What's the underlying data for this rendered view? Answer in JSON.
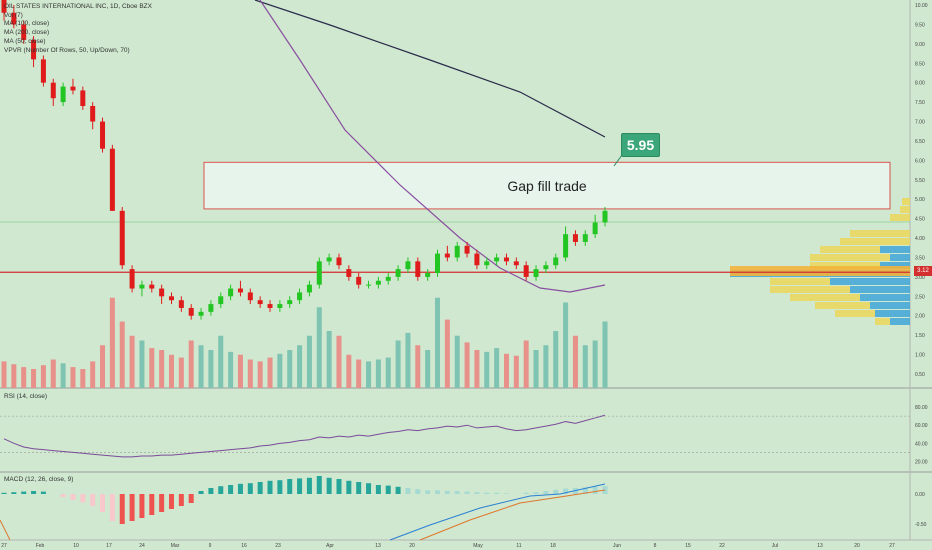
{
  "legend": {
    "title": "OIL STATES INTERNATIONAL INC, 1D, Cboe BZX",
    "lines": [
      "Vol (7)",
      "MA (100, close)",
      "MA (200, close)",
      "MA (50, close)",
      "VPVR (Number Of Rows, 50, Up/Down, 70)"
    ]
  },
  "indicators": {
    "rsi_label": "RSI (14, close)",
    "macd_label": "MACD (12, 26, close, 9)"
  },
  "annotation": {
    "gap_label": "Gap fill trade",
    "callout": "5.95"
  },
  "current_price": "3.12",
  "colors": {
    "up": "#22c522",
    "down": "#e01b1b",
    "vol_up": "#7fc3b2",
    "vol_down": "#e8908a",
    "macd_pos": "#26a69a",
    "macd_neg": "#ef5350"
  },
  "chart_data": {
    "type": "candlestick",
    "price_axis": {
      "min": 0.5,
      "max": 10.0,
      "ticks": [
        "10.00",
        "9.50",
        "9.00",
        "8.50",
        "8.00",
        "7.50",
        "7.00",
        "6.50",
        "6.00",
        "5.50",
        "5.00",
        "4.50",
        "4.00",
        "3.50",
        "3.00",
        "2.50",
        "2.00",
        "1.50",
        "1.00",
        "0.50"
      ]
    },
    "x_ticks": [
      "27",
      "Feb",
      "10",
      "17",
      "24",
      "Mar",
      "9",
      "16",
      "23",
      "Apr",
      "13",
      "20",
      "May",
      "11",
      "18",
      "Jun",
      "8",
      "15",
      "22",
      "Jul",
      "13",
      "20",
      "27"
    ],
    "candles": [
      [
        10.6,
        10.9,
        9.6,
        9.8
      ],
      [
        9.8,
        10.0,
        9.4,
        9.5
      ],
      [
        9.5,
        9.6,
        9.0,
        9.1
      ],
      [
        9.1,
        9.2,
        8.4,
        8.6
      ],
      [
        8.6,
        8.7,
        7.9,
        8.0
      ],
      [
        8.0,
        8.1,
        7.4,
        7.6
      ],
      [
        7.5,
        8.0,
        7.4,
        7.9
      ],
      [
        7.9,
        8.1,
        7.7,
        7.8
      ],
      [
        7.8,
        7.9,
        7.3,
        7.4
      ],
      [
        7.4,
        7.5,
        6.8,
        7.0
      ],
      [
        7.0,
        7.1,
        6.2,
        6.3
      ],
      [
        6.3,
        6.4,
        4.7,
        4.7
      ],
      [
        4.7,
        4.8,
        3.2,
        3.3
      ],
      [
        3.2,
        3.3,
        2.6,
        2.7
      ],
      [
        2.7,
        2.9,
        2.5,
        2.8
      ],
      [
        2.8,
        2.9,
        2.6,
        2.7
      ],
      [
        2.7,
        2.8,
        2.3,
        2.5
      ],
      [
        2.5,
        2.6,
        2.3,
        2.4
      ],
      [
        2.4,
        2.5,
        2.1,
        2.2
      ],
      [
        2.2,
        2.3,
        1.9,
        2.0
      ],
      [
        2.0,
        2.2,
        1.9,
        2.1
      ],
      [
        2.1,
        2.4,
        2.0,
        2.3
      ],
      [
        2.3,
        2.6,
        2.2,
        2.5
      ],
      [
        2.5,
        2.8,
        2.4,
        2.7
      ],
      [
        2.7,
        2.9,
        2.5,
        2.6
      ],
      [
        2.6,
        2.7,
        2.3,
        2.4
      ],
      [
        2.4,
        2.5,
        2.2,
        2.3
      ],
      [
        2.3,
        2.4,
        2.1,
        2.2
      ],
      [
        2.2,
        2.4,
        2.1,
        2.3
      ],
      [
        2.3,
        2.5,
        2.2,
        2.4
      ],
      [
        2.4,
        2.7,
        2.3,
        2.6
      ],
      [
        2.6,
        2.9,
        2.5,
        2.8
      ],
      [
        2.8,
        3.5,
        2.7,
        3.4
      ],
      [
        3.4,
        3.6,
        3.3,
        3.5
      ],
      [
        3.5,
        3.6,
        3.2,
        3.3
      ],
      [
        3.2,
        3.3,
        2.9,
        3.0
      ],
      [
        3.0,
        3.1,
        2.7,
        2.8
      ],
      [
        2.8,
        2.9,
        2.7,
        2.8
      ],
      [
        2.8,
        3.0,
        2.7,
        2.9
      ],
      [
        2.9,
        3.1,
        2.8,
        3.0
      ],
      [
        3.0,
        3.3,
        2.9,
        3.2
      ],
      [
        3.2,
        3.5,
        3.1,
        3.4
      ],
      [
        3.4,
        3.5,
        2.9,
        3.0
      ],
      [
        3.0,
        3.2,
        2.9,
        3.1
      ],
      [
        3.1,
        3.7,
        3.0,
        3.6
      ],
      [
        3.6,
        3.8,
        3.4,
        3.5
      ],
      [
        3.5,
        3.9,
        3.4,
        3.8
      ],
      [
        3.8,
        3.9,
        3.5,
        3.6
      ],
      [
        3.6,
        3.7,
        3.2,
        3.3
      ],
      [
        3.3,
        3.5,
        3.2,
        3.4
      ],
      [
        3.4,
        3.6,
        3.3,
        3.5
      ],
      [
        3.5,
        3.6,
        3.3,
        3.4
      ],
      [
        3.4,
        3.5,
        3.2,
        3.3
      ],
      [
        3.3,
        3.4,
        2.9,
        3.0
      ],
      [
        3.0,
        3.3,
        2.9,
        3.2
      ],
      [
        3.2,
        3.4,
        3.1,
        3.3
      ],
      [
        3.3,
        3.6,
        3.2,
        3.5
      ],
      [
        3.5,
        4.3,
        3.4,
        4.1
      ],
      [
        4.1,
        4.2,
        3.8,
        3.9
      ],
      [
        3.9,
        4.2,
        3.8,
        4.1
      ],
      [
        4.1,
        4.6,
        4.0,
        4.4
      ],
      [
        4.4,
        4.8,
        4.3,
        4.7
      ]
    ],
    "volume_relative": [
      0.28,
      0.25,
      0.22,
      0.2,
      0.24,
      0.3,
      0.26,
      0.22,
      0.2,
      0.28,
      0.45,
      0.95,
      0.7,
      0.55,
      0.5,
      0.42,
      0.4,
      0.35,
      0.32,
      0.5,
      0.45,
      0.4,
      0.55,
      0.38,
      0.35,
      0.3,
      0.28,
      0.32,
      0.36,
      0.4,
      0.45,
      0.55,
      0.85,
      0.6,
      0.55,
      0.35,
      0.3,
      0.28,
      0.3,
      0.32,
      0.5,
      0.58,
      0.45,
      0.4,
      0.95,
      0.72,
      0.55,
      0.48,
      0.4,
      0.38,
      0.42,
      0.36,
      0.34,
      0.5,
      0.4,
      0.45,
      0.6,
      0.9,
      0.55,
      0.45,
      0.5,
      0.7
    ],
    "ma_lines": {
      "ma_dark": [
        [
          255,
          0
        ],
        [
          330,
          25
        ],
        [
          430,
          60
        ],
        [
          520,
          92
        ],
        [
          605,
          137
        ]
      ],
      "ma_purple": [
        [
          260,
          0
        ],
        [
          300,
          60
        ],
        [
          345,
          130
        ],
        [
          400,
          185
        ],
        [
          460,
          238
        ],
        [
          500,
          268
        ],
        [
          540,
          288
        ],
        [
          570,
          292
        ],
        [
          605,
          285
        ]
      ]
    },
    "gap_zone": {
      "top": 5.95,
      "bottom": 4.75
    },
    "resistance_line": 3.12,
    "rsi": {
      "axis_ticks": [
        "80.00",
        "60.00",
        "40.00",
        "20.00"
      ],
      "values": [
        45,
        40,
        36,
        34,
        33,
        32,
        31,
        30,
        29,
        28,
        27,
        26,
        25,
        25,
        26,
        26,
        27,
        27,
        28,
        29,
        30,
        31,
        32,
        33,
        34,
        35,
        37,
        38,
        40,
        41,
        43,
        44,
        47,
        46,
        48,
        47,
        49,
        48,
        50,
        52,
        53,
        55,
        54,
        56,
        57,
        59,
        58,
        60,
        57,
        58,
        59,
        56,
        54,
        55,
        57,
        59,
        61,
        64,
        62,
        65,
        68,
        71
      ]
    },
    "macd": {
      "axis_ticks": [
        "0.00",
        "-0.50"
      ],
      "hist": [
        0.02,
        0.03,
        0.04,
        0.05,
        0.04,
        0.0,
        -0.05,
        -0.1,
        -0.14,
        -0.2,
        -0.3,
        -0.45,
        -0.5,
        -0.45,
        -0.4,
        -0.35,
        -0.3,
        -0.25,
        -0.2,
        -0.15,
        0.05,
        0.1,
        0.13,
        0.15,
        0.17,
        0.18,
        0.2,
        0.22,
        0.23,
        0.25,
        0.26,
        0.27,
        0.3,
        0.27,
        0.25,
        0.22,
        0.2,
        0.18,
        0.15,
        0.14,
        0.12,
        0.1,
        0.08,
        0.06,
        0.06,
        0.05,
        0.05,
        0.04,
        0.03,
        0.02,
        0.02,
        0.01,
        0.0,
        0.02,
        0.03,
        0.05,
        0.07,
        0.09,
        0.1,
        0.11,
        0.12,
        0.13
      ]
    }
  }
}
